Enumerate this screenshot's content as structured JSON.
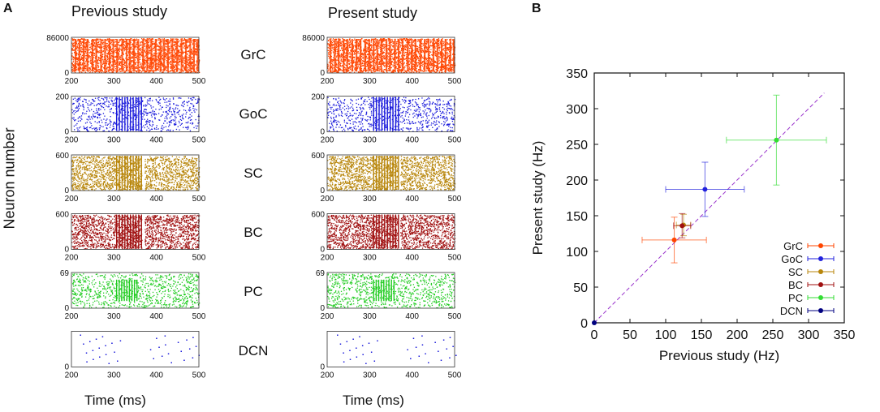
{
  "panel_a": {
    "letter": "A",
    "left_title": "Previous study",
    "right_title": "Present study",
    "ylabel": "Neuron number",
    "xlabel": "Time (ms)",
    "x_ticks": [
      "200",
      "300",
      "400",
      "500"
    ],
    "rows": [
      {
        "name": "GrC",
        "y_top": "86000",
        "y_bottom": "0",
        "color": "#ff4500",
        "density": 0.95
      },
      {
        "name": "GoC",
        "y_top": "200",
        "y_bottom": "0",
        "color": "#1a1adb",
        "density": 0.3
      },
      {
        "name": "SC",
        "y_top": "600",
        "y_bottom": "0",
        "color": "#b8860b",
        "density": 0.75
      },
      {
        "name": "BC",
        "y_top": "600",
        "y_bottom": "0",
        "color": "#a01010",
        "density": 0.75
      },
      {
        "name": "PC",
        "y_top": "69",
        "y_bottom": "0",
        "color": "#22cc22",
        "density": 0.35
      },
      {
        "name": "DCN",
        "y_top": "",
        "y_bottom": "0",
        "color": "#1a1adb",
        "density": 0.05
      }
    ]
  },
  "panel_b": {
    "letter": "B",
    "xlabel": "Previous study (Hz)",
    "ylabel": "Present study (Hz)"
  },
  "chart_data": [
    {
      "type": "scatter",
      "title": "",
      "xlabel": "Previous study (Hz)",
      "ylabel": "Present study (Hz)",
      "xlim": [
        0,
        350
      ],
      "ylim": [
        0,
        350
      ],
      "x_ticks": [
        0,
        50,
        100,
        150,
        200,
        250,
        300,
        350
      ],
      "y_ticks": [
        0,
        50,
        100,
        150,
        200,
        250,
        300,
        350
      ],
      "diagonal": {
        "from": 0,
        "to": 322,
        "color": "#9933cc",
        "style": "dashed"
      },
      "legend_position": "bottom-right",
      "series": [
        {
          "name": "GrC",
          "color": "#ff4500",
          "x": 112,
          "y": 116,
          "xerr": 45,
          "yerr": 32
        },
        {
          "name": "GoC",
          "color": "#2222dd",
          "x": 155,
          "y": 187,
          "xerr": 55,
          "yerr": 38
        },
        {
          "name": "SC",
          "color": "#b8860b",
          "x": 125,
          "y": 137,
          "xerr": 10,
          "yerr": 15
        },
        {
          "name": "BC",
          "color": "#a01010",
          "x": 123,
          "y": 136,
          "xerr": 12,
          "yerr": 17
        },
        {
          "name": "PC",
          "color": "#33dd33",
          "x": 255,
          "y": 256,
          "xerr": 70,
          "yerr": 63
        },
        {
          "name": "DCN",
          "color": "#000080",
          "x": 0,
          "y": 0,
          "xerr": 0,
          "yerr": 0
        }
      ]
    }
  ]
}
